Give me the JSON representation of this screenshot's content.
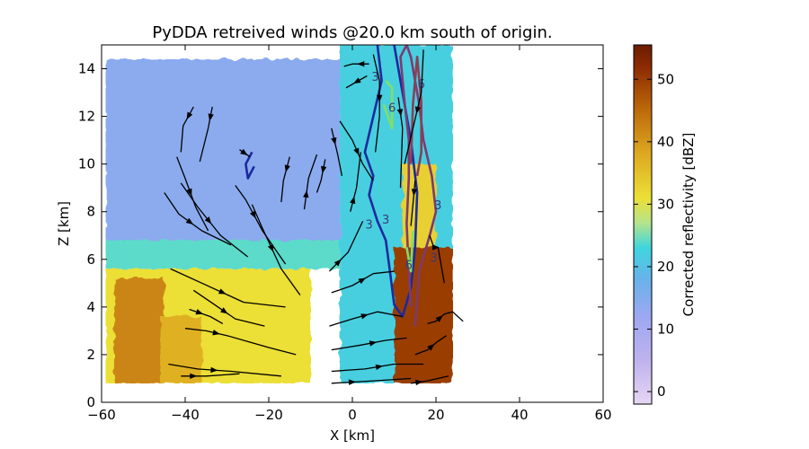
{
  "chart_data": {
    "type": "heatmap",
    "title": "PyDDA retreived winds @20.0 km south of origin.",
    "xlabel": "X [km]",
    "ylabel": "Z [km]",
    "xlim": [
      -60,
      60
    ],
    "ylim": [
      0,
      15
    ],
    "xticks": [
      -60,
      -40,
      -20,
      0,
      20,
      40,
      60
    ],
    "yticks": [
      0,
      2,
      4,
      6,
      8,
      10,
      12,
      14
    ],
    "xtick_labels": [
      "−60",
      "−40",
      "−20",
      "0",
      "20",
      "40",
      "60"
    ],
    "ytick_labels": [
      "0",
      "2",
      "4",
      "6",
      "8",
      "10",
      "12",
      "14"
    ],
    "grid": false,
    "colorbar": {
      "label": "Corrected reflectivity [dBZ]",
      "range": [
        -2,
        55.5
      ],
      "ticks": [
        0,
        10,
        20,
        30,
        40,
        50
      ],
      "tick_labels": [
        "0",
        "10",
        "20",
        "30",
        "40",
        "50"
      ],
      "colormap_stops": [
        {
          "value": -2,
          "color": "#e6d6f4"
        },
        {
          "value": 5,
          "color": "#bfb2ee"
        },
        {
          "value": 12,
          "color": "#9da8f0"
        },
        {
          "value": 18,
          "color": "#68b2ea"
        },
        {
          "value": 23,
          "color": "#3ed6de"
        },
        {
          "value": 27,
          "color": "#b4e48c"
        },
        {
          "value": 31,
          "color": "#ecdf36"
        },
        {
          "value": 38,
          "color": "#dda921"
        },
        {
          "value": 45,
          "color": "#bd6a0a"
        },
        {
          "value": 52,
          "color": "#8c2a03"
        },
        {
          "value": 55.5,
          "color": "#6c1c02"
        }
      ]
    },
    "reflectivity_regions": [
      {
        "name": "anvil-left",
        "x": [
          -59,
          -3
        ],
        "z": [
          6.6,
          14.4
        ],
        "dbz": 14
      },
      {
        "name": "melting-band",
        "x": [
          -59,
          6
        ],
        "z": [
          5.6,
          6.8
        ],
        "dbz": 24
      },
      {
        "name": "stratiform-rain",
        "x": [
          -59,
          -10
        ],
        "z": [
          0.8,
          5.6
        ],
        "dbz": 31
      },
      {
        "name": "rain-core-left",
        "x": [
          -57,
          -45
        ],
        "z": [
          0.8,
          5.2
        ],
        "dbz": 42
      },
      {
        "name": "rain-core-mid",
        "x": [
          -46,
          -36
        ],
        "z": [
          0.8,
          3.6
        ],
        "dbz": 37
      },
      {
        "name": "convective-column",
        "x": [
          -3,
          24
        ],
        "z": [
          0.8,
          15
        ],
        "dbz": 22
      },
      {
        "name": "updraft-core",
        "x": [
          10,
          24
        ],
        "z": [
          0.8,
          6.5
        ],
        "dbz": 50
      },
      {
        "name": "upper-core",
        "x": [
          12,
          20
        ],
        "z": [
          6.5,
          10
        ],
        "dbz": 33
      }
    ],
    "updraft_contours": [
      {
        "level": "3",
        "color": "#1c2a9e",
        "points": [
          [
            6,
            15
          ],
          [
            7,
            13.5
          ],
          [
            5,
            12
          ],
          [
            3,
            10.5
          ],
          [
            5,
            9.5
          ],
          [
            4,
            8.7
          ],
          [
            6,
            7.6
          ],
          [
            8,
            6.8
          ],
          [
            9,
            5.5
          ],
          [
            10,
            4.1
          ],
          [
            12,
            3.6
          ],
          [
            14,
            4.8
          ],
          [
            15,
            6.5
          ],
          [
            15.5,
            8.8
          ],
          [
            14,
            11
          ],
          [
            12,
            13
          ],
          [
            10,
            15
          ]
        ]
      },
      {
        "level": "3",
        "color": "#1c2a9e",
        "points": [
          [
            -24,
            10.5
          ],
          [
            -25.5,
            10
          ],
          [
            -25,
            9.4
          ],
          [
            -23.5,
            9.9
          ]
        ]
      },
      {
        "level": "3",
        "color": "#7b3b72",
        "points": [
          [
            15,
            3.2
          ],
          [
            16,
            5.5
          ],
          [
            18.5,
            7
          ],
          [
            20,
            8
          ],
          [
            19,
            9.5
          ],
          [
            17,
            11
          ],
          [
            16,
            12.5
          ],
          [
            14,
            14.5
          ],
          [
            13,
            15
          ],
          [
            11.5,
            14.5
          ],
          [
            12.5,
            12.6
          ],
          [
            13.5,
            11
          ],
          [
            13.5,
            9.4
          ],
          [
            13,
            7.5
          ],
          [
            13.5,
            5.5
          ],
          [
            14,
            4
          ]
        ]
      },
      {
        "level": "6",
        "color": "#8b3f56",
        "points": [
          [
            14,
            10
          ],
          [
            14.5,
            12.5
          ],
          [
            15.5,
            14.5
          ],
          [
            16.5,
            12.6
          ],
          [
            16.5,
            10.5
          ],
          [
            15.5,
            9.5
          ]
        ]
      },
      {
        "level": "6",
        "color": "#7fe066",
        "points": [
          [
            7.5,
            12.5
          ],
          [
            9.5,
            11.5
          ],
          [
            9.5,
            13.2
          ],
          [
            8,
            13.5
          ]
        ]
      },
      {
        "level": "6",
        "color": "#7fe066",
        "points": [
          [
            13,
            6.5
          ],
          [
            14,
            5.5
          ],
          [
            14.5,
            7.2
          ]
        ]
      }
    ],
    "contour_labels": [
      {
        "text": "3",
        "x": 5.5,
        "z": 13.5
      },
      {
        "text": "3",
        "x": 4,
        "z": 7.3
      },
      {
        "text": "3",
        "x": 8,
        "z": 7.5
      },
      {
        "text": "3",
        "x": 20.5,
        "z": 8.1
      },
      {
        "text": "3",
        "x": 19.5,
        "z": 5.9
      },
      {
        "text": "6",
        "x": 16.5,
        "z": 13.2
      },
      {
        "text": "6",
        "x": 9.5,
        "z": 12.2
      },
      {
        "text": "6",
        "x": 13.5,
        "z": 5.6
      }
    ],
    "streamlines": [
      [
        [
          -38,
          12.4
        ],
        [
          -40.5,
          11.6
        ],
        [
          -41,
          10.5
        ]
      ],
      [
        [
          -33.5,
          12.4
        ],
        [
          -34.5,
          11.5
        ],
        [
          -36.5,
          10.1
        ]
      ],
      [
        [
          -42,
          10.3
        ],
        [
          -40,
          9.4
        ],
        [
          -37.5,
          8.2
        ],
        [
          -34.5,
          7.2
        ]
      ],
      [
        [
          -41,
          9.2
        ],
        [
          -37,
          8.2
        ],
        [
          -31.5,
          7
        ],
        [
          -25,
          6.1
        ]
      ],
      [
        [
          -45,
          8.8
        ],
        [
          -41.5,
          7.9
        ],
        [
          -36,
          7.2
        ],
        [
          -29,
          6.6
        ]
      ],
      [
        [
          -28,
          9.1
        ],
        [
          -25.5,
          8.5
        ],
        [
          -21.5,
          7.2
        ],
        [
          -16,
          5.8
        ]
      ],
      [
        [
          -24,
          8.3
        ],
        [
          -21.5,
          7.3
        ],
        [
          -17,
          5.6
        ],
        [
          -12.5,
          4.5
        ]
      ],
      [
        [
          -27,
          10.6
        ],
        [
          -24.5,
          10.3
        ]
      ],
      [
        [
          -15,
          10.3
        ],
        [
          -16.5,
          9.3
        ],
        [
          -17,
          8.4
        ]
      ],
      [
        [
          -11.5,
          8.1
        ],
        [
          -10.5,
          9.4
        ],
        [
          -8.5,
          10.4
        ]
      ],
      [
        [
          -6.5,
          10.2
        ],
        [
          -7.5,
          9.3
        ],
        [
          -8.5,
          8.8
        ]
      ],
      [
        [
          -5,
          11.5
        ],
        [
          -3.5,
          10.4
        ],
        [
          -2.5,
          9.5
        ]
      ],
      [
        [
          -43.5,
          5.6
        ],
        [
          -36,
          5
        ],
        [
          -26,
          4.2
        ],
        [
          -16,
          4
        ]
      ],
      [
        [
          -38,
          4.7
        ],
        [
          -33,
          4.1
        ],
        [
          -28,
          3.5
        ],
        [
          -21,
          3.2
        ]
      ],
      [
        [
          -40,
          3.1
        ],
        [
          -35,
          3
        ],
        [
          -30,
          2.8
        ],
        [
          -20,
          2.3
        ],
        [
          -13.5,
          2
        ]
      ],
      [
        [
          -39,
          3.9
        ],
        [
          -34,
          3.6
        ],
        [
          -31,
          3.3
        ]
      ],
      [
        [
          -44,
          1.6
        ],
        [
          -37,
          1.4
        ],
        [
          -29,
          1.3
        ],
        [
          -17,
          1.1
        ]
      ],
      [
        [
          -41,
          1.1
        ],
        [
          -35,
          1.1
        ],
        [
          -27,
          1.2
        ]
      ],
      [
        [
          -5.5,
          3.2
        ],
        [
          0,
          3.5
        ],
        [
          6,
          3.8
        ],
        [
          12,
          3.6
        ]
      ],
      [
        [
          -5.5,
          5.5
        ],
        [
          -1,
          6.3
        ],
        [
          2.5,
          7.6
        ]
      ],
      [
        [
          -5,
          4.6
        ],
        [
          0,
          4.9
        ],
        [
          5,
          5.4
        ],
        [
          10,
          5.5
        ]
      ],
      [
        [
          -5,
          2.2
        ],
        [
          2,
          2.4
        ],
        [
          8,
          2.6
        ],
        [
          13,
          2.7
        ]
      ],
      [
        [
          -5,
          1.3
        ],
        [
          3,
          1.4
        ],
        [
          10,
          1.6
        ],
        [
          17,
          1.6
        ]
      ],
      [
        [
          -5,
          0.8
        ],
        [
          5,
          0.9
        ],
        [
          14,
          1
        ]
      ],
      [
        [
          -3,
          11.8
        ],
        [
          0,
          11
        ],
        [
          2.5,
          10
        ],
        [
          5,
          9.3
        ]
      ],
      [
        [
          -0.5,
          8
        ],
        [
          1,
          9
        ],
        [
          2,
          10.5
        ]
      ],
      [
        [
          17,
          14.8
        ],
        [
          16.5,
          13
        ],
        [
          14.5,
          11.5
        ],
        [
          12.5,
          10
        ]
      ],
      [
        [
          5,
          14.6
        ],
        [
          6.5,
          13.5
        ],
        [
          6.5,
          12
        ],
        [
          5.5,
          10.5
        ]
      ],
      [
        [
          4,
          14.2
        ],
        [
          0,
          14.2
        ],
        [
          -2,
          14.1
        ]
      ],
      [
        [
          3.5,
          13.7
        ],
        [
          -1.5,
          13.2
        ]
      ],
      [
        [
          11,
          12.8
        ],
        [
          12,
          11.5
        ],
        [
          11.5,
          9
        ]
      ],
      [
        [
          15,
          9.3
        ],
        [
          14.5,
          8.3
        ],
        [
          14,
          7.4
        ]
      ],
      [
        [
          18.5,
          7
        ],
        [
          19.5,
          6.5
        ],
        [
          20.5,
          6.5
        ],
        [
          22,
          5
        ]
      ],
      [
        [
          18,
          3.3
        ],
        [
          20,
          3.4
        ],
        [
          22,
          3.7
        ],
        [
          24,
          3.8
        ],
        [
          26.5,
          3.4
        ]
      ],
      [
        [
          15,
          2
        ],
        [
          18,
          2.2
        ],
        [
          20,
          2.5
        ],
        [
          22.5,
          2.8
        ]
      ],
      [
        [
          14,
          0.8
        ],
        [
          18,
          0.9
        ],
        [
          23,
          1.1
        ]
      ]
    ]
  }
}
